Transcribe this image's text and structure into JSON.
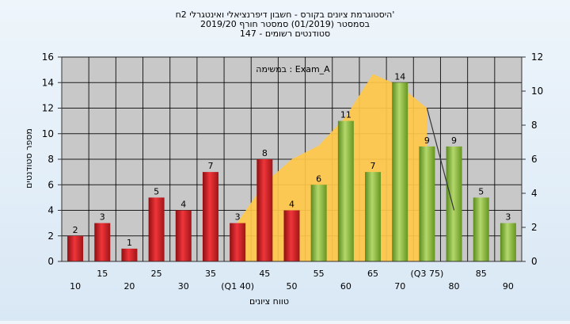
{
  "chart_data": {
    "type": "bar",
    "title_lines": [
      "היסטוגרמת ציונים בקורס - חשבון דיפרנציאלי ואינטגרלי 2ח'",
      "בסמסטר  (01/2019)  סמסטר חורף 2019/20",
      "סטודנטים רשומים - 147"
    ],
    "annotation": "במשימה : Exam_A",
    "xlabel": "טווח ציונים",
    "ylabel": "מספר סטודנטים",
    "ylim": [
      0,
      16
    ],
    "y_ticks": [
      0,
      2,
      4,
      6,
      8,
      10,
      12,
      14,
      16
    ],
    "y2lim": [
      0,
      12
    ],
    "y2_ticks": [
      0,
      2,
      4,
      6,
      8,
      10,
      12
    ],
    "categories": [
      "10",
      "15",
      "20",
      "25",
      "30",
      "35",
      "40",
      "45",
      "50",
      "55",
      "60",
      "65",
      "70",
      "75",
      "80",
      "85",
      "90"
    ],
    "x_tick_labels": [
      "10",
      "15",
      "20",
      "25",
      "30",
      "35",
      "(Q1 40)",
      "45",
      "50",
      "55",
      "60",
      "65",
      "70",
      "(Q3 75)",
      "80",
      "85",
      "90"
    ],
    "values": [
      2,
      3,
      1,
      5,
      4,
      7,
      3,
      8,
      4,
      6,
      11,
      7,
      14,
      9,
      9,
      5,
      3
    ],
    "bar_groups": [
      "fail",
      "fail",
      "fail",
      "fail",
      "fail",
      "fail",
      "fail",
      "fail",
      "fail",
      "pass",
      "pass",
      "pass",
      "pass",
      "pass",
      "pass",
      "pass",
      "pass"
    ],
    "area_series": {
      "axis": "right",
      "x": [
        "40",
        "45",
        "50",
        "55",
        "60",
        "65",
        "70",
        "75"
      ],
      "values": [
        2.3,
        4.6,
        6.0,
        6.8,
        8.5,
        11.0,
        10.3,
        9.0
      ]
    },
    "line_series": {
      "axis": "right",
      "x": [
        "75",
        "80"
      ],
      "values": [
        9.0,
        3.0
      ]
    },
    "grid": true,
    "colors": {
      "fail_bar": "#e8262b",
      "pass_bar": "#86b93e",
      "area": "#ffc84a",
      "plot_bg": "#c8c8c8",
      "background": "#e6f0f9"
    }
  }
}
